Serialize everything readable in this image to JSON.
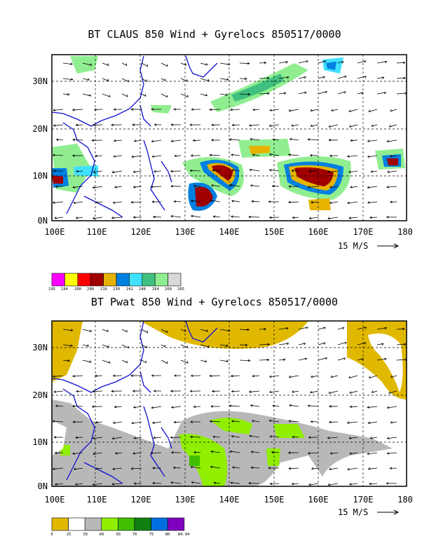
{
  "panels": [
    {
      "id": "claus",
      "title": "BT CLAUS 850 Wind + Gyrelocs 850517/0000",
      "lat_labels": [
        "30N",
        "20N",
        "10N",
        "0N"
      ],
      "lon_labels": [
        "100E",
        "110E",
        "120E",
        "130E",
        "140E",
        "150E",
        "160E",
        "170E",
        "180"
      ],
      "wind_reference": "15 M/S",
      "legend": {
        "labels": [
          "195",
          "184",
          "200",
          "208",
          "216",
          "230",
          "242",
          "248",
          "264",
          "260",
          "265"
        ],
        "colors": [
          "#ff00ff",
          "#ffff00",
          "#ff0000",
          "#a00000",
          "#e6b400",
          "#0080e0",
          "#40e0ff",
          "#40c080",
          "#90ee90",
          "#d8d8d8"
        ]
      }
    },
    {
      "id": "pwat",
      "title": "BT Pwat 850 Wind + Gyrelocs 850517/0000",
      "lat_labels": [
        "30N",
        "20N",
        "10N",
        "0N"
      ],
      "lon_labels": [
        "100E",
        "110E",
        "120E",
        "130E",
        "140E",
        "150E",
        "160E",
        "170E",
        "180"
      ],
      "wind_reference": "15 M/S",
      "legend": {
        "labels": [
          "0",
          "25",
          "55",
          "60",
          "65",
          "70",
          "75",
          "80",
          "84.94"
        ],
        "colors": [
          "#e0b800",
          "#ffffff",
          "#b8b8b8",
          "#90ee00",
          "#40c000",
          "#108010",
          "#0070e0",
          "#8000c0"
        ]
      }
    }
  ]
}
